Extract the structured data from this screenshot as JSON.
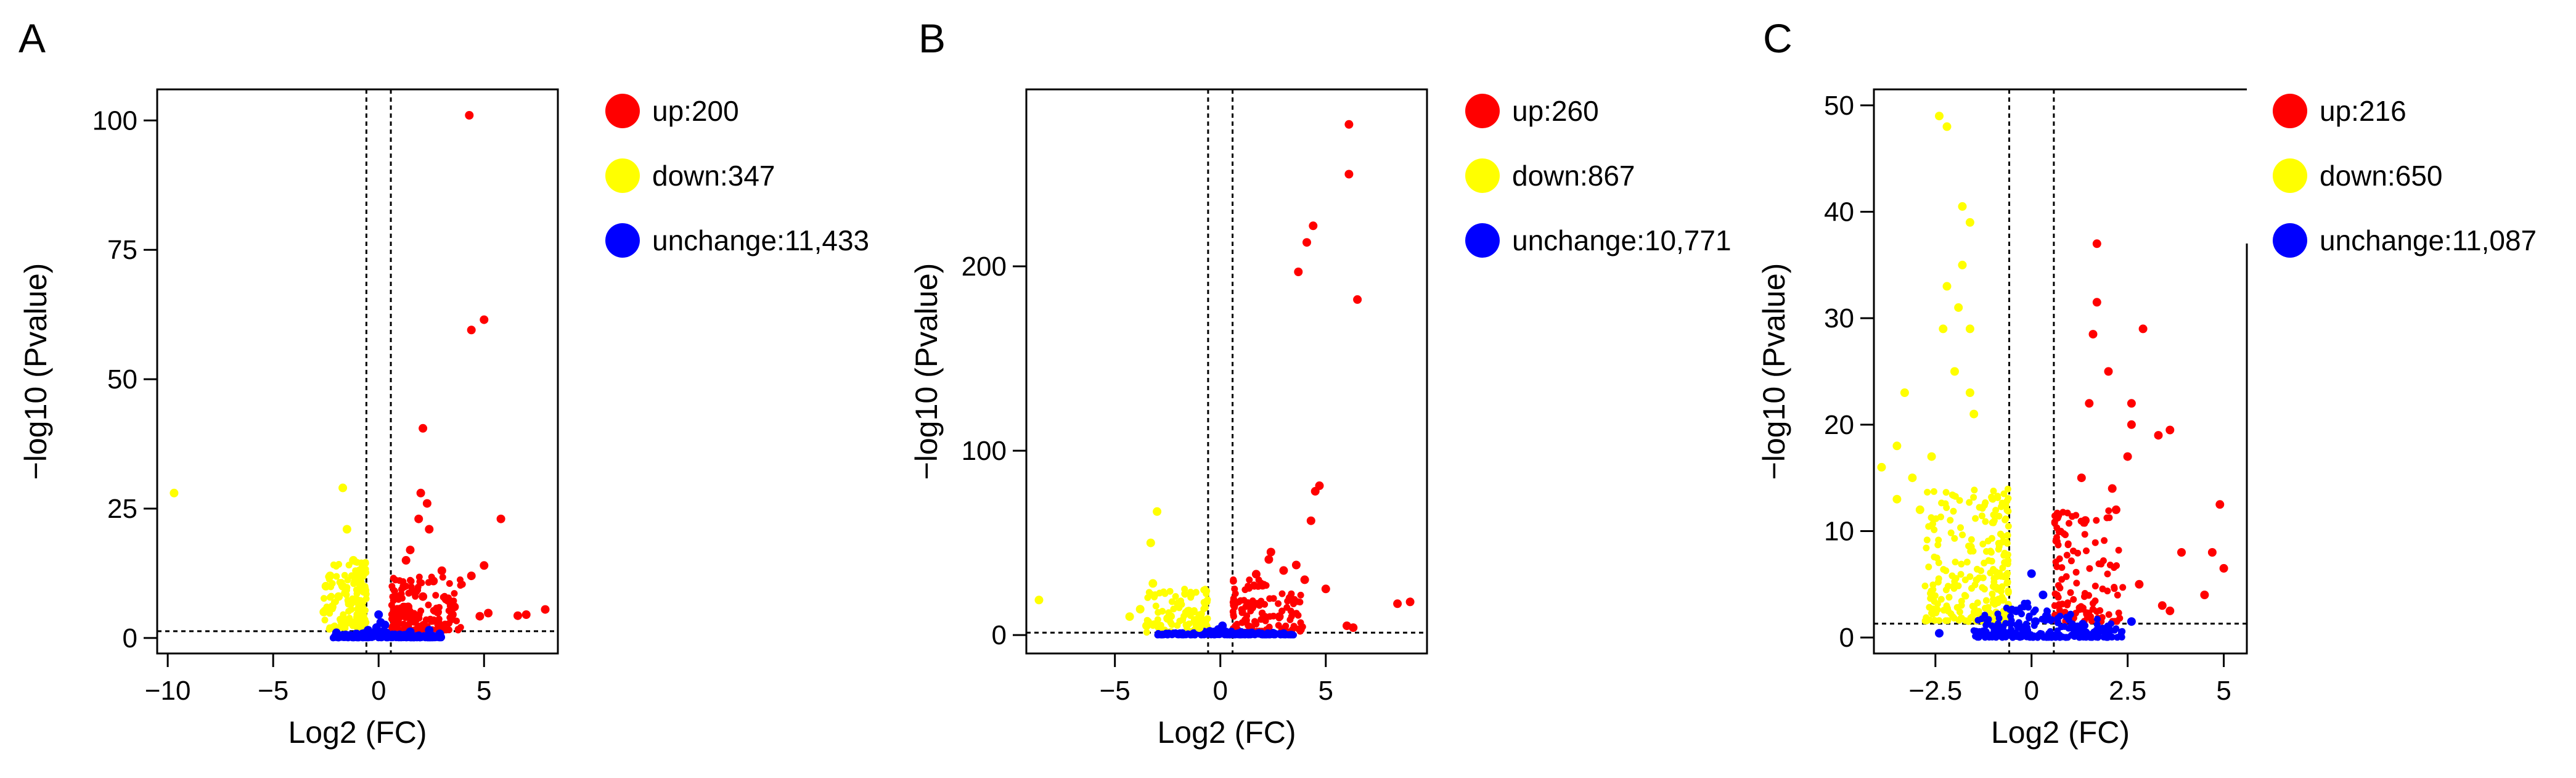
{
  "chart_data": [
    {
      "type": "scatter",
      "panel": "A",
      "xlabel": "Log2 (FC)",
      "ylabel": "-log10 (Pvalue)",
      "xlim": [
        -10.5,
        8.5
      ],
      "ylim": [
        -3,
        106
      ],
      "xticks": [
        -10,
        -5,
        0,
        5
      ],
      "yticks": [
        0,
        25,
        50,
        75,
        100
      ],
      "fc_threshold": 0.58,
      "p_threshold": 1.3,
      "legend": [
        {
          "label": "up:200",
          "color": "#ff0000"
        },
        {
          "label": "down:347",
          "color": "#ffff00"
        },
        {
          "label": "unchange:11,433",
          "color": "#0000ff"
        }
      ],
      "series": [
        {
          "name": "up",
          "color": "#ff0000",
          "points": [
            [
              4.3,
              101
            ],
            [
              5.0,
              61.5
            ],
            [
              4.4,
              59.5
            ],
            [
              2.1,
              40.5
            ],
            [
              5.8,
              23
            ],
            [
              2.0,
              28
            ],
            [
              2.3,
              26
            ],
            [
              1.9,
              23
            ],
            [
              2.4,
              21
            ],
            [
              5.0,
              14
            ],
            [
              4.4,
              12
            ],
            [
              1.5,
              17
            ],
            [
              1.3,
              15
            ],
            [
              3.0,
              13
            ],
            [
              2.6,
              11
            ],
            [
              1.2,
              10
            ],
            [
              1.6,
              9
            ],
            [
              1.0,
              8
            ],
            [
              2.1,
              8
            ],
            [
              3.2,
              7.5
            ],
            [
              7.9,
              5.5
            ],
            [
              7.0,
              4.5
            ],
            [
              6.6,
              4.3
            ],
            [
              5.2,
              4.8
            ],
            [
              4.8,
              4.2
            ],
            [
              3.6,
              6
            ],
            [
              1.4,
              6
            ],
            [
              2.8,
              5
            ],
            [
              1.1,
              4.5
            ],
            [
              0.9,
              3.5
            ],
            [
              1.7,
              3.2
            ],
            [
              3.5,
              4.5
            ]
          ]
        },
        {
          "name": "down",
          "color": "#ffff00",
          "points": [
            [
              -9.7,
              28
            ],
            [
              -1.7,
              29
            ],
            [
              -1.5,
              21
            ],
            [
              -1.2,
              15
            ],
            [
              -0.9,
              13
            ],
            [
              -1.1,
              11
            ],
            [
              -0.7,
              9
            ],
            [
              -2.3,
              12
            ],
            [
              -2.5,
              10
            ],
            [
              -1.9,
              8
            ],
            [
              -1.4,
              7
            ],
            [
              -0.8,
              6
            ],
            [
              -2.2,
              6
            ],
            [
              -1.0,
              4
            ],
            [
              -1.3,
              3
            ],
            [
              -0.7,
              2.5
            ],
            [
              -2.6,
              5
            ],
            [
              -1.7,
              10
            ]
          ]
        },
        {
          "name": "unchange",
          "color": "#0000ff",
          "points": [
            [
              -0.3,
              0.5
            ],
            [
              0.2,
              1.2
            ],
            [
              -0.1,
              2
            ],
            [
              0.4,
              0.8
            ],
            [
              0.1,
              3
            ],
            [
              -0.5,
              1.5
            ],
            [
              0.3,
              2.5
            ],
            [
              1.5,
              1.2
            ],
            [
              -1.5,
              0.5
            ],
            [
              2.4,
              1.5
            ],
            [
              -2.0,
              1.0
            ],
            [
              0.0,
              4.5
            ],
            [
              1.0,
              0.6
            ],
            [
              -0.8,
              0.3
            ],
            [
              2.9,
              0.8
            ],
            [
              -0.2,
              1.0
            ]
          ]
        }
      ],
      "point_clouds": [
        {
          "group": "down",
          "color": "#ffff00",
          "region": [
            -2.6,
            -0.58,
            1.5,
            15
          ],
          "count": 140
        },
        {
          "group": "up",
          "color": "#ff0000",
          "region": [
            0.62,
            4.0,
            1.5,
            12
          ],
          "count": 150
        },
        {
          "group": "unchange",
          "color": "#0000ff",
          "region": [
            -2.2,
            3.0,
            0,
            1.3
          ],
          "count": 260
        }
      ]
    },
    {
      "type": "scatter",
      "panel": "B",
      "xlabel": "Log2 (FC)",
      "ylabel": "-log10 (Pvalue)",
      "xlim": [
        -9.2,
        9.8
      ],
      "ylim": [
        -10,
        296
      ],
      "xticks": [
        -5,
        0,
        5
      ],
      "yticks": [
        0,
        100,
        200
      ],
      "fc_threshold": 0.58,
      "p_threshold": 1.3,
      "legend": [
        {
          "label": "up:260",
          "color": "#ff0000"
        },
        {
          "label": "down:867",
          "color": "#ffff00"
        },
        {
          "label": "unchange:10,771",
          "color": "#0000ff"
        }
      ],
      "series": [
        {
          "name": "up",
          "color": "#ff0000",
          "points": [
            [
              6.1,
              277
            ],
            [
              6.1,
              250
            ],
            [
              4.4,
              222
            ],
            [
              4.1,
              213
            ],
            [
              3.7,
              197
            ],
            [
              6.5,
              182
            ],
            [
              4.7,
              81
            ],
            [
              4.5,
              78
            ],
            [
              4.3,
              62
            ],
            [
              2.4,
              45
            ],
            [
              2.3,
              41
            ],
            [
              3.6,
              38
            ],
            [
              3.0,
              35
            ],
            [
              1.7,
              33
            ],
            [
              4.0,
              30
            ],
            [
              2.0,
              27
            ],
            [
              5.0,
              25
            ],
            [
              3.3,
              20
            ],
            [
              9.0,
              18
            ],
            [
              8.4,
              17
            ],
            [
              6.0,
              5
            ],
            [
              6.3,
              4
            ],
            [
              3.8,
              3
            ],
            [
              1.5,
              15
            ],
            [
              2.8,
              10
            ],
            [
              1.2,
              8
            ]
          ]
        },
        {
          "name": "down",
          "color": "#ffff00",
          "points": [
            [
              -3.0,
              67
            ],
            [
              -3.3,
              50
            ],
            [
              -8.6,
              19
            ],
            [
              -3.2,
              28
            ],
            [
              -3.8,
              14
            ],
            [
              -2.0,
              17
            ],
            [
              -1.5,
              13
            ],
            [
              -4.3,
              10
            ],
            [
              -2.5,
              9
            ],
            [
              -1.2,
              8
            ],
            [
              -3.5,
              5
            ],
            [
              -1.0,
              4
            ]
          ]
        },
        {
          "name": "unchange",
          "color": "#0000ff",
          "points": [
            [
              -0.3,
              0.5
            ],
            [
              0.2,
              1.5
            ],
            [
              -0.1,
              3
            ],
            [
              0.4,
              0.8
            ],
            [
              0.1,
              5
            ],
            [
              -0.5,
              2
            ],
            [
              1.5,
              1
            ],
            [
              -1.8,
              0.6
            ],
            [
              2.5,
              1
            ],
            [
              -2.5,
              0.5
            ],
            [
              3.0,
              0.8
            ]
          ]
        }
      ],
      "point_clouds": [
        {
          "group": "down",
          "color": "#ffff00",
          "region": [
            -3.5,
            -0.6,
            1.5,
            25
          ],
          "count": 120
        },
        {
          "group": "up",
          "color": "#ff0000",
          "region": [
            0.6,
            4.0,
            1.5,
            30
          ],
          "count": 110
        },
        {
          "group": "unchange",
          "color": "#0000ff",
          "region": [
            -3.0,
            3.5,
            0,
            2.5
          ],
          "count": 200
        }
      ]
    },
    {
      "type": "scatter",
      "panel": "C",
      "xlabel": "Log2 (FC)",
      "ylabel": "-log10 (Pvalue)",
      "xlim": [
        -4.1,
        5.6
      ],
      "ylim": [
        -1.5,
        51.5
      ],
      "xticks": [
        -2.5,
        0,
        2.5,
        5
      ],
      "yticks": [
        0,
        10,
        20,
        30,
        40,
        50
      ],
      "fc_threshold": 0.58,
      "p_threshold": 1.3,
      "legend": [
        {
          "label": "up:216",
          "color": "#ff0000"
        },
        {
          "label": "down:650",
          "color": "#ffff00"
        },
        {
          "label": "unchange:11,087",
          "color": "#0000ff"
        }
      ],
      "series": [
        {
          "name": "up",
          "color": "#ff0000",
          "points": [
            [
              1.7,
              37
            ],
            [
              1.7,
              31.5
            ],
            [
              1.6,
              28.5
            ],
            [
              2.9,
              29
            ],
            [
              2.6,
              22
            ],
            [
              2.0,
              25
            ],
            [
              1.5,
              22
            ],
            [
              3.3,
              19
            ],
            [
              3.6,
              19.5
            ],
            [
              2.6,
              20
            ],
            [
              2.5,
              17
            ],
            [
              1.3,
              15
            ],
            [
              2.1,
              14
            ],
            [
              4.9,
              12.5
            ],
            [
              3.9,
              8
            ],
            [
              4.7,
              8
            ],
            [
              5.0,
              6.5
            ],
            [
              2.2,
              12
            ],
            [
              1.4,
              11
            ],
            [
              2.8,
              5
            ],
            [
              3.4,
              3
            ],
            [
              3.6,
              2.5
            ],
            [
              4.5,
              4
            ]
          ]
        },
        {
          "name": "down",
          "color": "#ffff00",
          "points": [
            [
              -2.4,
              49
            ],
            [
              -2.2,
              48
            ],
            [
              -1.8,
              40.5
            ],
            [
              -1.6,
              39
            ],
            [
              -1.8,
              35
            ],
            [
              -2.2,
              33
            ],
            [
              -1.9,
              31
            ],
            [
              -2.3,
              29
            ],
            [
              -1.6,
              29
            ],
            [
              -3.3,
              23
            ],
            [
              -2.0,
              25
            ],
            [
              -1.6,
              23
            ],
            [
              -3.5,
              18
            ],
            [
              -3.9,
              16
            ],
            [
              -3.1,
              15
            ],
            [
              -2.6,
              17
            ],
            [
              -1.5,
              21
            ],
            [
              -2.9,
              12
            ],
            [
              -3.5,
              13
            ]
          ]
        },
        {
          "name": "unchange",
          "color": "#0000ff",
          "points": [
            [
              -0.2,
              0.3
            ],
            [
              0.1,
              1.5
            ],
            [
              -0.4,
              2.5
            ],
            [
              0.3,
              4
            ],
            [
              0.0,
              6
            ],
            [
              0.4,
              2
            ],
            [
              1.2,
              1
            ],
            [
              -1.2,
              0.5
            ],
            [
              2.0,
              0.8
            ],
            [
              2.6,
              1.5
            ],
            [
              -2.4,
              0.4
            ],
            [
              -0.3,
              1.0
            ]
          ]
        }
      ],
      "point_clouds": [
        {
          "group": "down",
          "color": "#ffff00",
          "region": [
            -2.8,
            -0.6,
            1.5,
            14
          ],
          "count": 260
        },
        {
          "group": "up",
          "color": "#ff0000",
          "region": [
            0.6,
            2.4,
            1.5,
            12
          ],
          "count": 120
        },
        {
          "group": "unchange",
          "color": "#0000ff",
          "region": [
            -1.5,
            2.4,
            0,
            3.5
          ],
          "count": 220
        }
      ]
    }
  ]
}
